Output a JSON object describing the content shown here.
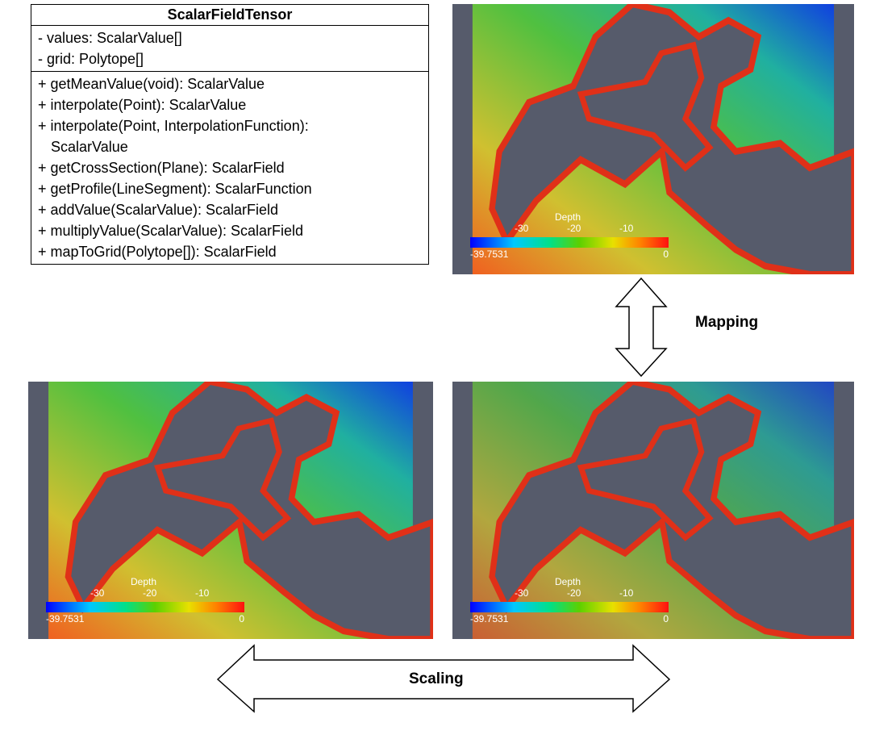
{
  "uml": {
    "title": "ScalarFieldTensor",
    "attributes": [
      "- values: ScalarValue[]",
      "- grid: Polytope[]"
    ],
    "methods": [
      "+ getMeanValue(void): ScalarValue",
      "+ interpolate(Point): ScalarValue",
      "+ interpolate(Point, InterpolationFunction): ScalarValue",
      "+ getCrossSection(Plane): ScalarField",
      "+ getProfile(LineSegment): ScalarFunction",
      "+ addValue(ScalarValue): ScalarField",
      "+ multiplyValue(ScalarValue): ScalarField",
      "+ mapToGrid(Polytope[]): ScalarField"
    ]
  },
  "panels": [
    {
      "colorbar": {
        "title": "Depth",
        "ticks": [
          "-30",
          "-20",
          "-10"
        ],
        "min": "-39.7531",
        "max": "0"
      }
    },
    {
      "colorbar": {
        "title": "Depth",
        "ticks": [
          "-30",
          "-20",
          "-10"
        ],
        "min": "-39.7531",
        "max": "0"
      }
    },
    {
      "colorbar": {
        "title": "Depth",
        "ticks": [
          "-30",
          "-20",
          "-10"
        ],
        "min": "-39.7531",
        "max": "0"
      }
    }
  ],
  "arrows": {
    "mapping": "Mapping",
    "scaling": "Scaling"
  }
}
